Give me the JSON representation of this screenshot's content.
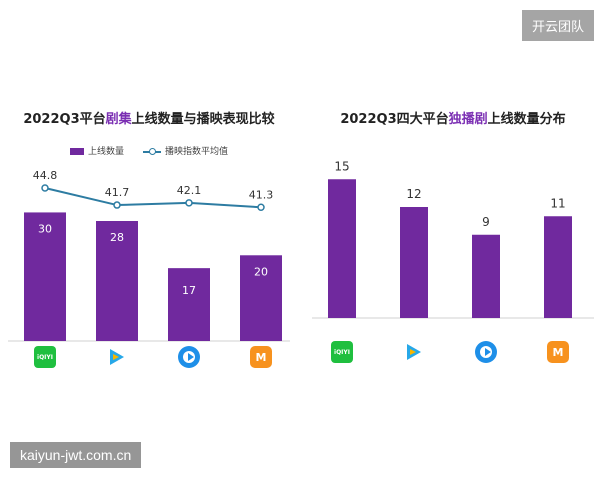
{
  "badge": "开云团队",
  "watermark": "kaiyun-jwt.com.cn",
  "colors": {
    "bar": "#70299e",
    "line": "#2d7ca2",
    "axis": "#d0d0d0",
    "highlight": "#7b2fb3"
  },
  "platform_logos": [
    {
      "name": "iqiyi",
      "icon": "iqiyi-logo-icon",
      "text": "iQIYI"
    },
    {
      "name": "tencent",
      "icon": "tencent-video-logo-icon"
    },
    {
      "name": "youku",
      "icon": "youku-logo-icon"
    },
    {
      "name": "mgtv",
      "icon": "mgtv-logo-icon",
      "text": "M"
    }
  ],
  "chart_data": [
    {
      "type": "bar",
      "title_parts": {
        "before": "2022Q3平台",
        "highlight": "剧集",
        "after": "上线数量与播映表现比较"
      },
      "legend": [
        "上线数量",
        "播映指数平均值"
      ],
      "categories": [
        "爱奇艺",
        "腾讯视频",
        "优酷",
        "芒果TV"
      ],
      "series": [
        {
          "name": "上线数量",
          "type": "bar",
          "values": [
            30,
            28,
            17,
            20
          ]
        },
        {
          "name": "播映指数平均值",
          "type": "line",
          "values": [
            44.8,
            41.7,
            42.1,
            41.3
          ]
        }
      ],
      "ylim": [
        0,
        35
      ],
      "grid": false
    },
    {
      "type": "bar",
      "title_parts": {
        "before": "2022Q3四大平台",
        "highlight": "独播剧",
        "after": "上线数量分布"
      },
      "categories": [
        "爱奇艺",
        "腾讯视频",
        "优酷",
        "芒果TV"
      ],
      "values": [
        15,
        12,
        9,
        11
      ],
      "ylim": [
        0,
        16
      ],
      "grid": false
    }
  ]
}
